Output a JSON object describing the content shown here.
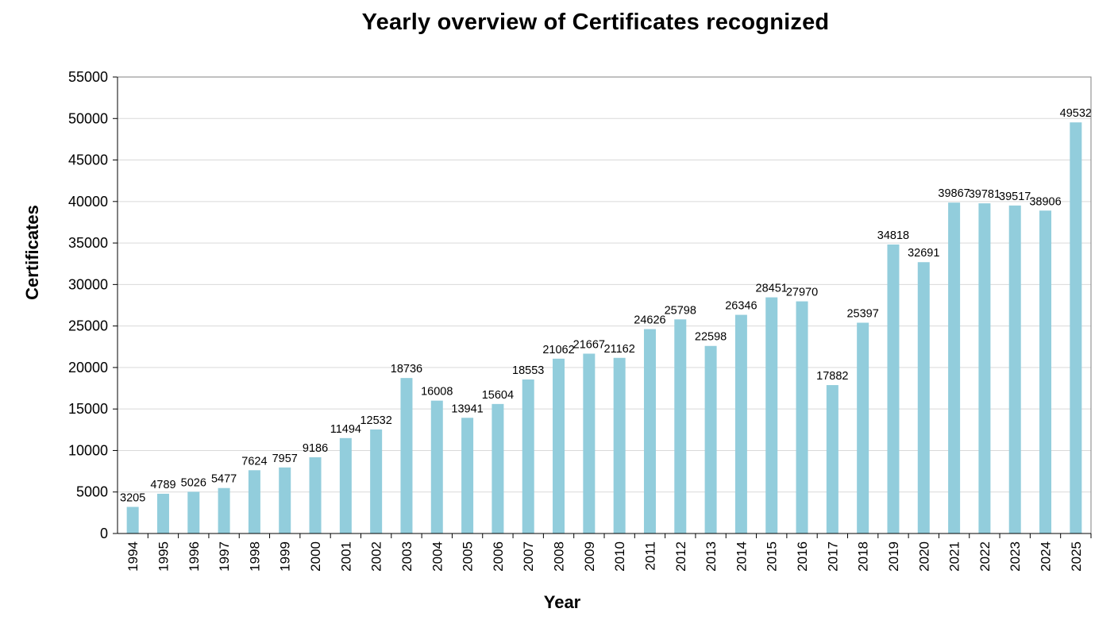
{
  "chart_data": {
    "type": "bar",
    "title": "Yearly overview of Certificates recognized",
    "xlabel": "Year",
    "ylabel": "Certificates",
    "ylim": [
      0,
      55000
    ],
    "yticks": [
      0,
      5000,
      10000,
      15000,
      20000,
      25000,
      30000,
      35000,
      40000,
      45000,
      50000,
      55000
    ],
    "grid": true,
    "bar_color": "#92CDDC",
    "categories": [
      "1994",
      "1995",
      "1996",
      "1997",
      "1998",
      "1999",
      "2000",
      "2001",
      "2002",
      "2003",
      "2004",
      "2005",
      "2006",
      "2007",
      "2008",
      "2009",
      "2010",
      "2011",
      "2012",
      "2013",
      "2014",
      "2015",
      "2016",
      "2017",
      "2018",
      "2019",
      "2020",
      "2021",
      "2022",
      "2023",
      "2024",
      "2025"
    ],
    "values": [
      3205,
      4789,
      5026,
      5477,
      7624,
      7957,
      9186,
      11494,
      12532,
      18736,
      16008,
      13941,
      15604,
      18553,
      21062,
      21667,
      21162,
      24626,
      25798,
      22598,
      26346,
      28451,
      27970,
      17882,
      25397,
      34818,
      32691,
      39867,
      39781,
      39517,
      38906,
      49532
    ]
  }
}
